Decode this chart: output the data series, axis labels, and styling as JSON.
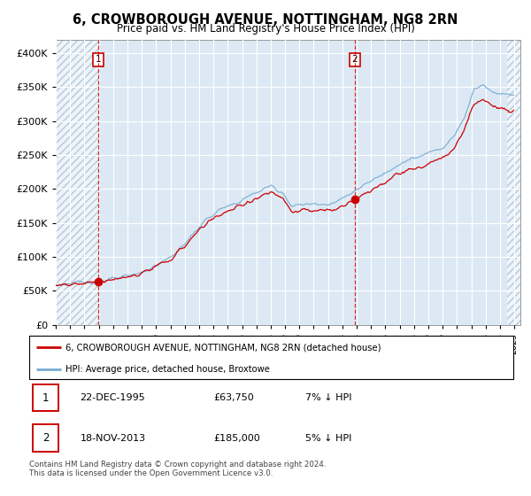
{
  "title": "6, CROWBOROUGH AVENUE, NOTTINGHAM, NG8 2RN",
  "subtitle": "Price paid vs. HM Land Registry's House Price Index (HPI)",
  "legend_line1": "6, CROWBOROUGH AVENUE, NOTTINGHAM, NG8 2RN (detached house)",
  "legend_line2": "HPI: Average price, detached house, Broxtowe",
  "annotation1_date": "22-DEC-1995",
  "annotation1_price": "£63,750",
  "annotation1_hpi": "7% ↓ HPI",
  "annotation2_date": "18-NOV-2013",
  "annotation2_price": "£185,000",
  "annotation2_hpi": "5% ↓ HPI",
  "footer": "Contains HM Land Registry data © Crown copyright and database right 2024.\nThis data is licensed under the Open Government Licence v3.0.",
  "red_color": "#cc0000",
  "blue_color": "#7aabcf",
  "bg_color": "#dce9f5",
  "hatch_color": "#b8c8d8",
  "grid_color": "#ffffff"
}
